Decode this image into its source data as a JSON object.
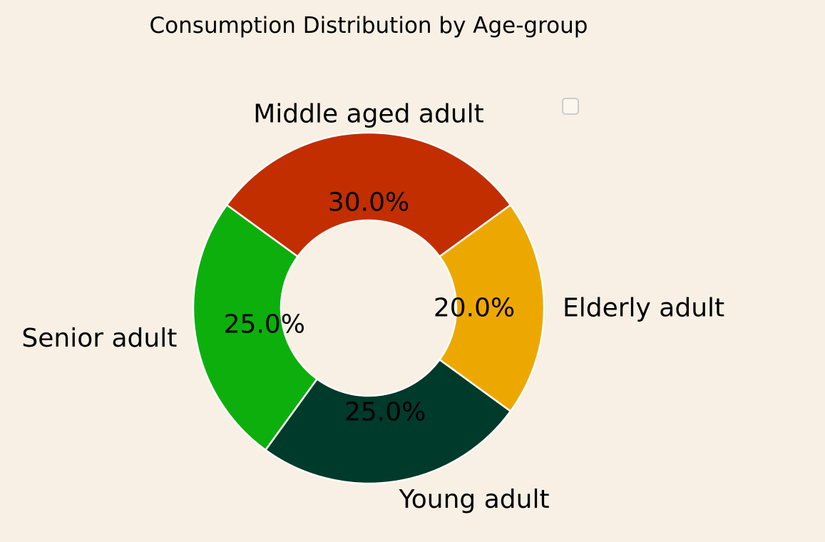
{
  "chart_data": {
    "type": "pie",
    "title": "Consumption Distribution by Age-group",
    "donut": true,
    "categories": [
      "Middle aged adult",
      "Senior adult",
      "Young adult",
      "Elderly adult"
    ],
    "values": [
      30,
      25,
      25,
      20
    ],
    "pct_labels": [
      "30.0%",
      "25.0%",
      "25.0%",
      "20.0%"
    ],
    "colors": [
      "#c22e00",
      "#0daf0d",
      "#003a2a",
      "#eda800"
    ],
    "legend": "top-right, empty",
    "background": "#f8f0e4"
  }
}
